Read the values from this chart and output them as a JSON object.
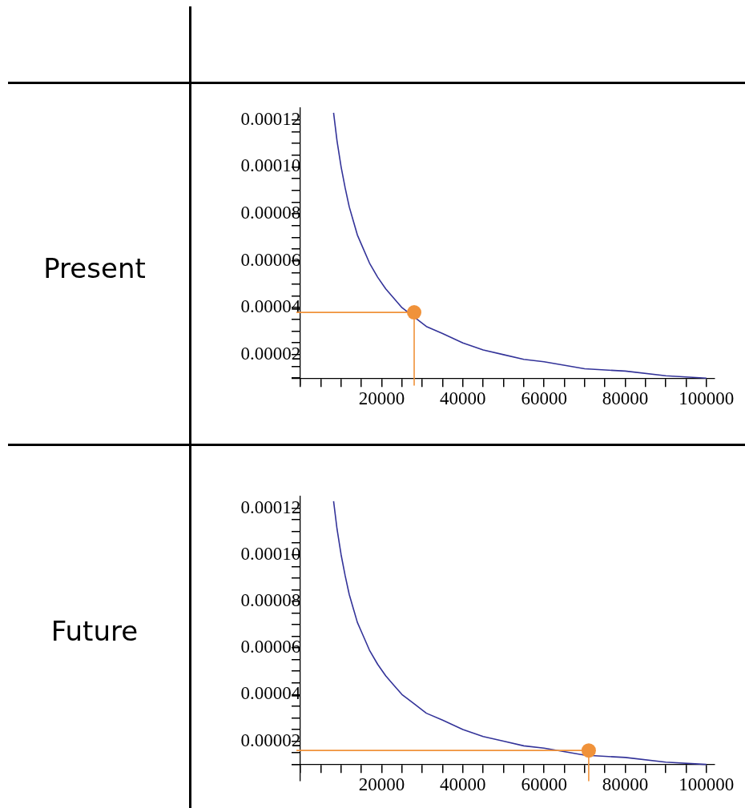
{
  "chart_data": [
    {
      "type": "line",
      "title": "Present",
      "xlim": [
        -2000,
        102000
      ],
      "ylim": [
        7e-06,
        0.000125
      ],
      "xticks": [
        {
          "value": 0,
          "label": null
        },
        {
          "value": 5000,
          "label": null
        },
        {
          "value": 10000,
          "label": null
        },
        {
          "value": 15000,
          "label": null
        },
        {
          "value": 20000,
          "label": "20000"
        },
        {
          "value": 25000,
          "label": null
        },
        {
          "value": 30000,
          "label": null
        },
        {
          "value": 35000,
          "label": null
        },
        {
          "value": 40000,
          "label": "40000"
        },
        {
          "value": 45000,
          "label": null
        },
        {
          "value": 50000,
          "label": null
        },
        {
          "value": 55000,
          "label": null
        },
        {
          "value": 60000,
          "label": "60000"
        },
        {
          "value": 65000,
          "label": null
        },
        {
          "value": 70000,
          "label": null
        },
        {
          "value": 75000,
          "label": null
        },
        {
          "value": 80000,
          "label": "80000"
        },
        {
          "value": 85000,
          "label": null
        },
        {
          "value": 90000,
          "label": null
        },
        {
          "value": 95000,
          "label": null
        },
        {
          "value": 100000,
          "label": "100000"
        }
      ],
      "yticks": [
        {
          "value": 1e-05,
          "label": null
        },
        {
          "value": 1.5e-05,
          "label": null
        },
        {
          "value": 2e-05,
          "label": "0.00002"
        },
        {
          "value": 2.5e-05,
          "label": null
        },
        {
          "value": 3e-05,
          "label": null
        },
        {
          "value": 3.5e-05,
          "label": null
        },
        {
          "value": 4e-05,
          "label": "0.00004"
        },
        {
          "value": 4.5e-05,
          "label": null
        },
        {
          "value": 5e-05,
          "label": null
        },
        {
          "value": 5.5e-05,
          "label": null
        },
        {
          "value": 6e-05,
          "label": "0.00006"
        },
        {
          "value": 6.5e-05,
          "label": null
        },
        {
          "value": 7e-05,
          "label": null
        },
        {
          "value": 7.5e-05,
          "label": null
        },
        {
          "value": 8e-05,
          "label": "0.00008"
        },
        {
          "value": 8.5e-05,
          "label": null
        },
        {
          "value": 9e-05,
          "label": null
        },
        {
          "value": 9.5e-05,
          "label": null
        },
        {
          "value": 0.0001,
          "label": "0.00010"
        },
        {
          "value": 0.000105,
          "label": null
        },
        {
          "value": 0.00011,
          "label": null
        },
        {
          "value": 0.000115,
          "label": null
        },
        {
          "value": 0.00012,
          "label": "0.00012"
        }
      ],
      "series": [
        {
          "type": "line",
          "marker": "none",
          "color": "#333399",
          "x": [
            8150,
            9000,
            10000,
            11000,
            12000,
            13000,
            14000,
            15000,
            17000,
            19000,
            21000,
            23000,
            25000,
            28000,
            31000,
            35000,
            40000,
            45000,
            50000,
            55000,
            60000,
            70000,
            80000,
            90000,
            100000
          ],
          "values": [
            0.000123,
            0.000111,
            0.0001,
            9.1e-05,
            8.3e-05,
            7.7e-05,
            7.1e-05,
            6.7e-05,
            5.9e-05,
            5.3e-05,
            4.8e-05,
            4.4e-05,
            4e-05,
            3.6e-05,
            3.2e-05,
            2.9e-05,
            2.5e-05,
            2.2e-05,
            2e-05,
            1.8e-05,
            1.7e-05,
            1.4e-05,
            1.3e-05,
            1.1e-05,
            1e-05
          ]
        },
        {
          "type": "line",
          "marker": "none",
          "color": "#f0923a",
          "x": [
            -1000,
            28000,
            28000
          ],
          "values": [
            3.8e-05,
            3.8e-05,
            7e-06
          ]
        },
        {
          "type": "scatter",
          "marker": "circle",
          "color": "#f0923a",
          "x": [
            28000
          ],
          "values": [
            3.8e-05
          ]
        }
      ]
    },
    {
      "type": "line",
      "title": "Future",
      "xlim": [
        -2000,
        102000
      ],
      "ylim": [
        3e-06,
        0.000125
      ],
      "xticks": [
        {
          "value": 0,
          "label": null
        },
        {
          "value": 5000,
          "label": null
        },
        {
          "value": 10000,
          "label": null
        },
        {
          "value": 15000,
          "label": null
        },
        {
          "value": 20000,
          "label": "20000"
        },
        {
          "value": 25000,
          "label": null
        },
        {
          "value": 30000,
          "label": null
        },
        {
          "value": 35000,
          "label": null
        },
        {
          "value": 40000,
          "label": "40000"
        },
        {
          "value": 45000,
          "label": null
        },
        {
          "value": 50000,
          "label": null
        },
        {
          "value": 55000,
          "label": null
        },
        {
          "value": 60000,
          "label": "60000"
        },
        {
          "value": 65000,
          "label": null
        },
        {
          "value": 70000,
          "label": null
        },
        {
          "value": 75000,
          "label": null
        },
        {
          "value": 80000,
          "label": "80000"
        },
        {
          "value": 85000,
          "label": null
        },
        {
          "value": 90000,
          "label": null
        },
        {
          "value": 95000,
          "label": null
        },
        {
          "value": 100000,
          "label": "100000"
        }
      ],
      "yticks": [
        {
          "value": 1e-05,
          "label": null
        },
        {
          "value": 1.5e-05,
          "label": null
        },
        {
          "value": 2e-05,
          "label": "0.00002"
        },
        {
          "value": 2.5e-05,
          "label": null
        },
        {
          "value": 3e-05,
          "label": null
        },
        {
          "value": 3.5e-05,
          "label": null
        },
        {
          "value": 4e-05,
          "label": "0.00004"
        },
        {
          "value": 4.5e-05,
          "label": null
        },
        {
          "value": 5e-05,
          "label": null
        },
        {
          "value": 5.5e-05,
          "label": null
        },
        {
          "value": 6e-05,
          "label": "0.00006"
        },
        {
          "value": 6.5e-05,
          "label": null
        },
        {
          "value": 7e-05,
          "label": null
        },
        {
          "value": 7.5e-05,
          "label": null
        },
        {
          "value": 8e-05,
          "label": "0.00008"
        },
        {
          "value": 8.5e-05,
          "label": null
        },
        {
          "value": 9e-05,
          "label": null
        },
        {
          "value": 9.5e-05,
          "label": null
        },
        {
          "value": 0.0001,
          "label": "0.00010"
        },
        {
          "value": 0.000105,
          "label": null
        },
        {
          "value": 0.00011,
          "label": null
        },
        {
          "value": 0.000115,
          "label": null
        },
        {
          "value": 0.00012,
          "label": "0.00012"
        }
      ],
      "series": [
        {
          "type": "line",
          "marker": "none",
          "color": "#333399",
          "x": [
            8150,
            9000,
            10000,
            11000,
            12000,
            13000,
            14000,
            15000,
            17000,
            19000,
            21000,
            23000,
            25000,
            28000,
            31000,
            35000,
            40000,
            45000,
            50000,
            55000,
            60000,
            70000,
            80000,
            90000,
            100000
          ],
          "values": [
            0.000123,
            0.000111,
            0.0001,
            9.1e-05,
            8.3e-05,
            7.7e-05,
            7.1e-05,
            6.7e-05,
            5.9e-05,
            5.3e-05,
            4.8e-05,
            4.4e-05,
            4e-05,
            3.6e-05,
            3.2e-05,
            2.9e-05,
            2.5e-05,
            2.2e-05,
            2e-05,
            1.8e-05,
            1.7e-05,
            1.4e-05,
            1.3e-05,
            1.1e-05,
            1e-05
          ]
        },
        {
          "type": "line",
          "marker": "none",
          "color": "#f0923a",
          "x": [
            -1000,
            71000,
            71000
          ],
          "values": [
            1.6e-05,
            1.6e-05,
            3e-06
          ]
        },
        {
          "type": "scatter",
          "marker": "circle",
          "color": "#f0923a",
          "x": [
            71000
          ],
          "values": [
            1.6e-05
          ]
        }
      ]
    }
  ]
}
